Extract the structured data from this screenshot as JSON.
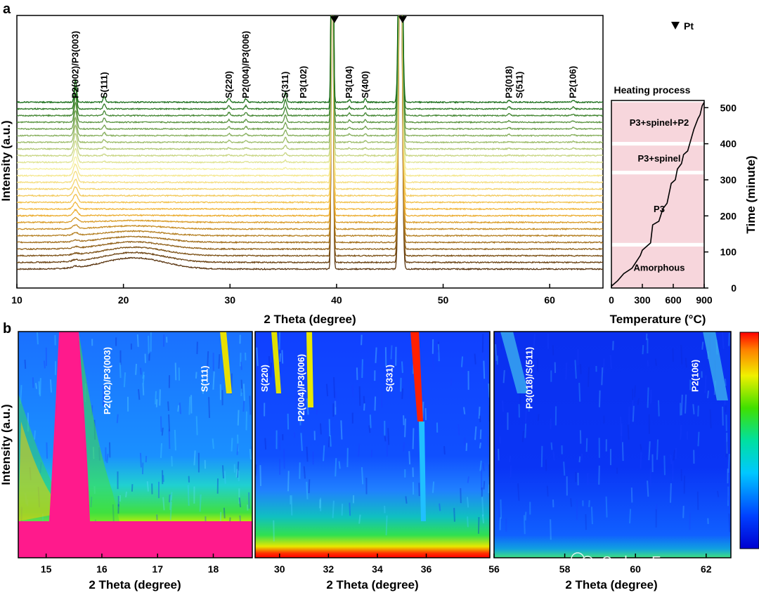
{
  "watermark": "Carbon Energy",
  "colors": {
    "trace_start": "#5a3510",
    "trace_mid": "#f0b030",
    "trace_light": "#f5f0a0",
    "trace_end": "#1a6e1a",
    "phase_band": "#f7d6dc",
    "heatmap_saturated": "#ff1a8c"
  },
  "chart_data": [
    {
      "id": "a-main",
      "type": "line",
      "panel_label": "a",
      "xlabel": "2 Theta (degree)",
      "ylabel": "Intensity (a.u.)",
      "xlim": [
        10,
        65
      ],
      "xticks": [
        "10",
        "20",
        "30",
        "40",
        "50",
        "60"
      ],
      "trace_count": 26,
      "legend": "Pt",
      "legend_position": "top-right",
      "pt_marker_positions": [
        39.8,
        46.2
      ],
      "peak_labels": [
        {
          "text": "P2(002)/P3(003)",
          "x": 15.5
        },
        {
          "text": "S(111)",
          "x": 18.2
        },
        {
          "text": "S(220)",
          "x": 29.9
        },
        {
          "text": "P2(004)/P3(006)",
          "x": 31.5
        },
        {
          "text": "S(311)",
          "x": 35.2
        },
        {
          "text": "P3(102)",
          "x": 36.9
        },
        {
          "text": "P3(104)",
          "x": 41.2
        },
        {
          "text": "S(400)",
          "x": 42.7
        },
        {
          "text": "P3(018)",
          "x": 56.2
        },
        {
          "text": "S(511)",
          "x": 57.2
        },
        {
          "text": "P2(106)",
          "x": 62.2
        }
      ]
    },
    {
      "id": "a-heating",
      "type": "line",
      "title": "Heating process",
      "xlabel": "Temperature (°C)",
      "ylabel": "Time (minute)",
      "xlim": [
        0,
        900
      ],
      "ylim": [
        0,
        520
      ],
      "xticks": [
        "0",
        "300",
        "600",
        "900"
      ],
      "yticks": [
        "0",
        "100",
        "200",
        "300",
        "400",
        "500"
      ],
      "phases": [
        {
          "name": "Amorphous",
          "t_start": 0,
          "t_end": 115
        },
        {
          "name": "P3",
          "t_start": 125,
          "t_end": 315
        },
        {
          "name": "P3+spinel",
          "t_start": 325,
          "t_end": 395
        },
        {
          "name": "P3+spinel+P2",
          "t_start": 405,
          "t_end": 515
        }
      ],
      "profile": [
        [
          0,
          5
        ],
        [
          60,
          20
        ],
        [
          120,
          40
        ],
        [
          200,
          55
        ],
        [
          280,
          90
        ],
        [
          300,
          105
        ],
        [
          360,
          120
        ],
        [
          380,
          125
        ],
        [
          400,
          175
        ],
        [
          460,
          185
        ],
        [
          500,
          220
        ],
        [
          540,
          235
        ],
        [
          580,
          290
        ],
        [
          620,
          300
        ],
        [
          640,
          330
        ],
        [
          680,
          345
        ],
        [
          700,
          370
        ],
        [
          740,
          380
        ],
        [
          780,
          420
        ],
        [
          800,
          440
        ],
        [
          840,
          470
        ],
        [
          860,
          480
        ],
        [
          880,
          505
        ],
        [
          900,
          515
        ]
      ]
    },
    {
      "id": "b1",
      "type": "heatmap",
      "panel_label": "b",
      "xlabel": "2 Theta (degree)",
      "ylabel": "Intensity (a.u.)",
      "xlim": [
        14.5,
        18.7
      ],
      "xticks": [
        "15",
        "16",
        "17",
        "18"
      ],
      "annotations": [
        {
          "text": "P2(002)/P3(003)",
          "x": 16.1
        },
        {
          "text": "S(111)",
          "x": 17.85
        }
      ]
    },
    {
      "id": "b2",
      "type": "heatmap",
      "xlabel": "2 Theta (degree)",
      "xlim": [
        29,
        38.6
      ],
      "xticks": [
        "30",
        "32",
        "34",
        "36"
      ],
      "annotations": [
        {
          "text": "S(220)",
          "x": 29.4
        },
        {
          "text": "P2(004)/P3(006)",
          "x": 30.9
        },
        {
          "text": "S(331)",
          "x": 34.5
        }
      ]
    },
    {
      "id": "b3",
      "type": "heatmap",
      "xlabel": "2 Theta (degree)",
      "xlim": [
        56,
        62.7
      ],
      "xticks": [
        "56",
        "58",
        "60",
        "62"
      ],
      "annotations": [
        {
          "text": "P3(018)/S(511)",
          "x": 57.0
        },
        {
          "text": "P2(106)",
          "x": 61.7
        }
      ]
    }
  ]
}
